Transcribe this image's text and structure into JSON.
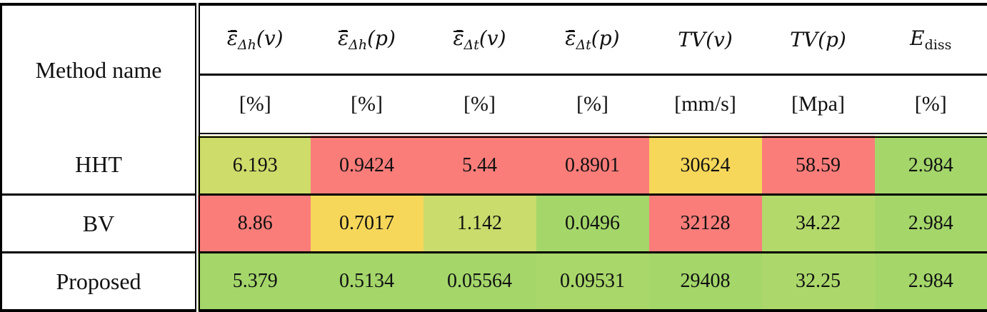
{
  "table": {
    "method_header": "Method name",
    "columns": [
      {
        "symbol_base": "ε̄",
        "symbol_sub": "Δh",
        "symbol_arg": "(v)",
        "unit": "[%]"
      },
      {
        "symbol_base": "ε̄",
        "symbol_sub": "Δh",
        "symbol_arg": "(p)",
        "unit": "[%]"
      },
      {
        "symbol_base": "ε̄",
        "symbol_sub": "Δt",
        "symbol_arg": "(v)",
        "unit": "[%]"
      },
      {
        "symbol_base": "ε̄",
        "symbol_sub": "Δt",
        "symbol_arg": "(p)",
        "unit": "[%]"
      },
      {
        "symbol_base": "TV",
        "symbol_sub": "",
        "symbol_arg": "(v)",
        "unit": "[mm/s]"
      },
      {
        "symbol_base": "TV",
        "symbol_sub": "",
        "symbol_arg": "(p)",
        "unit": "[Mpa]"
      },
      {
        "symbol_base": "E",
        "symbol_sub": "diss",
        "symbol_arg": "",
        "unit": "[%]"
      }
    ],
    "rows": [
      {
        "method": "HHT",
        "values": [
          "6.193",
          "0.9424",
          "5.44",
          "0.8901",
          "30624",
          "58.59",
          "2.984"
        ],
        "colors": [
          "#cedc6a",
          "#fb7d7a",
          "#fb7d7a",
          "#fb7d7a",
          "#f6d75a",
          "#fb7d7a",
          "#a4d66a"
        ]
      },
      {
        "method": "BV",
        "values": [
          "8.86",
          "0.7017",
          "1.142",
          "0.0496",
          "32128",
          "34.22",
          "2.984"
        ],
        "colors": [
          "#fb7d7a",
          "#f6d75a",
          "#c9dc6c",
          "#a4d66a",
          "#fb7d7a",
          "#b3d96b",
          "#a4d66a"
        ]
      },
      {
        "method": "Proposed",
        "values": [
          "5.379",
          "0.5134",
          "0.05564",
          "0.09531",
          "29408",
          "32.25",
          "2.984"
        ],
        "colors": [
          "#a4d66a",
          "#a4d66a",
          "#a4d66a",
          "#a9d76a",
          "#a4d66a",
          "#acd86b",
          "#a4d66a"
        ]
      }
    ]
  }
}
